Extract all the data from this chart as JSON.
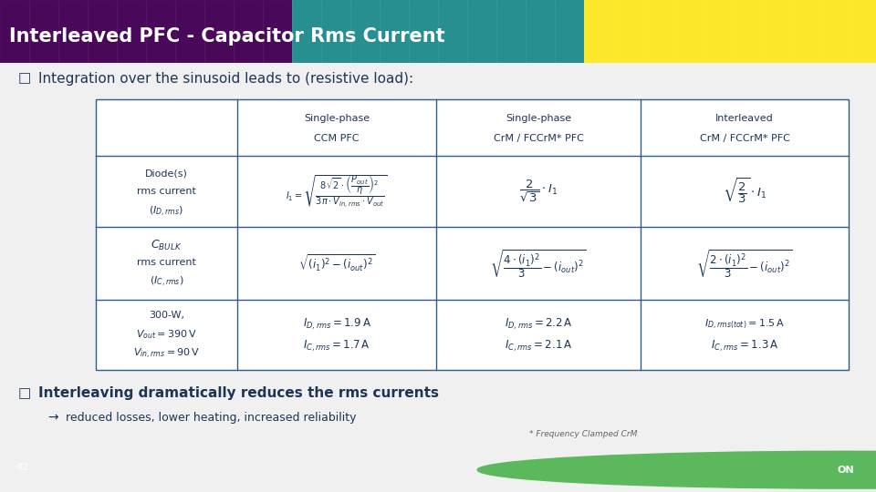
{
  "title": "Interleaved PFC - Capacitor Rms Current",
  "title_bg_color": "#2E5C8A",
  "title_text_color": "#FFFFFF",
  "slide_bg_color": "#F0F0F0",
  "bottom_bar_color": "#2E5C8A",
  "bullet1": "Integration over the sinusoid leads to (resistive load):",
  "bullet2": "Interleaving dramatically reduces the rms currents",
  "bullet2_sub": "reduced losses, lower heating, increased reliability",
  "footnote": "* Frequency Clamped CrM",
  "page_num": "42",
  "col_headers_row1": [
    "Single-phase",
    "Single-phase",
    "Interleaved"
  ],
  "col_headers_row2": [
    "CCM PFC",
    "CrM / FCCrM* PFC",
    "CrM / FCCrM* PFC"
  ],
  "table_border_color": "#2E5C8A",
  "table_text_color": "#1C3557",
  "on_semi_green": "#5CB85C"
}
